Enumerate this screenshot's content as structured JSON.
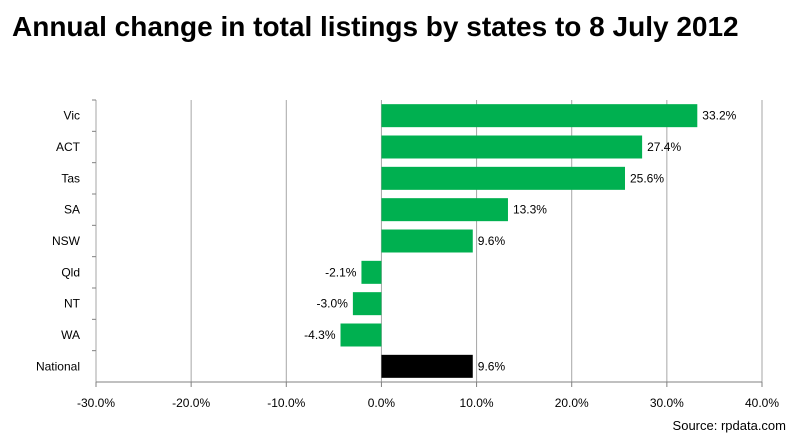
{
  "chart_data": {
    "type": "bar",
    "orientation": "horizontal",
    "title": "Annual change in total listings by states to 8 July 2012",
    "categories": [
      "Vic",
      "ACT",
      "Tas",
      "SA",
      "NSW",
      "Qld",
      "NT",
      "WA",
      "National"
    ],
    "values": [
      33.2,
      27.4,
      25.6,
      13.3,
      9.6,
      -2.1,
      -3.0,
      -4.3,
      9.6
    ],
    "value_labels": [
      "33.2%",
      "27.4%",
      "25.6%",
      "13.3%",
      "9.6%",
      "-2.1%",
      "-3.0%",
      "-4.3%",
      "9.6%"
    ],
    "colors": [
      "#00b050",
      "#00b050",
      "#00b050",
      "#00b050",
      "#00b050",
      "#00b050",
      "#00b050",
      "#00b050",
      "#000000"
    ],
    "xlim": [
      -30,
      40
    ],
    "xticks": [
      -30,
      -20,
      -10,
      0,
      10,
      20,
      30,
      40
    ],
    "xtick_labels": [
      "-30.0%",
      "-20.0%",
      "-10.0%",
      "0.0%",
      "10.0%",
      "20.0%",
      "30.0%",
      "40.0%"
    ],
    "grid": true,
    "xlabel": "",
    "ylabel": ""
  },
  "source": "Source: rpdata.com"
}
